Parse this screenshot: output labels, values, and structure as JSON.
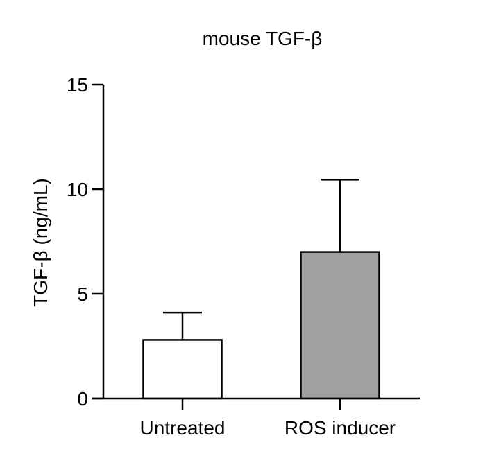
{
  "chart_data": {
    "type": "bar",
    "title": "mouse TGF-β",
    "xlabel": "",
    "ylabel": "TGF-β (ng/mL)",
    "ylim": [
      0,
      15
    ],
    "yticks": [
      0,
      5,
      10,
      15
    ],
    "categories": [
      "Untreated",
      "ROS inducer"
    ],
    "values": [
      2.8,
      7.0
    ],
    "error_upper": [
      1.3,
      3.45
    ],
    "bar_colors": [
      "#ffffff",
      "#a0a0a0"
    ],
    "grid": false,
    "legend": "none"
  }
}
